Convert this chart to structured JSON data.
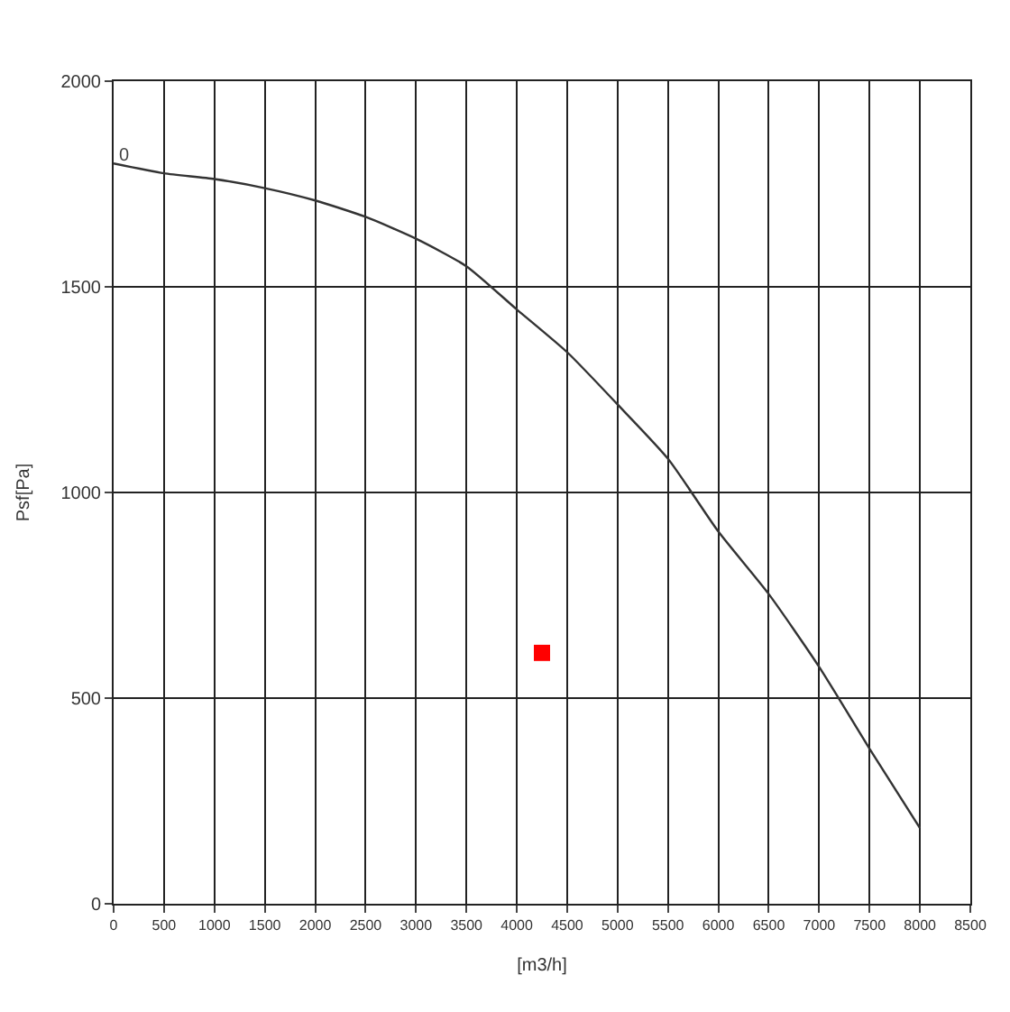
{
  "chart_data": {
    "type": "line",
    "xlabel": "[m3/h]",
    "ylabel": "Psf[Pa]",
    "series": [
      {
        "color": "#333333",
        "marker": "none",
        "x": [
          0,
          500,
          1000,
          1500,
          2000,
          2500,
          3000,
          3500,
          4000,
          4500,
          5000,
          5500,
          6000,
          6500,
          7000,
          7500,
          8000
        ],
        "values": [
          1800,
          1776,
          1762,
          1740,
          1710,
          1670,
          1617,
          1550,
          1445,
          1341,
          1214,
          1082,
          905,
          753,
          576,
          377,
          184
        ]
      },
      {
        "type": "scatter",
        "color": "#ff0000",
        "marker": "square",
        "x": [
          4250
        ],
        "values": [
          610
        ]
      }
    ],
    "annotations": [
      "0"
    ],
    "xlim": [
      0,
      8500
    ],
    "xticks": [
      0,
      500,
      1000,
      1500,
      2000,
      2500,
      3000,
      3500,
      4000,
      4500,
      5000,
      5500,
      6000,
      6500,
      7000,
      7500,
      8000,
      8500
    ],
    "ylim": [
      0,
      2000
    ],
    "yticks": [
      0,
      500,
      1000,
      1500,
      2000
    ],
    "grid": true,
    "legend": false
  }
}
